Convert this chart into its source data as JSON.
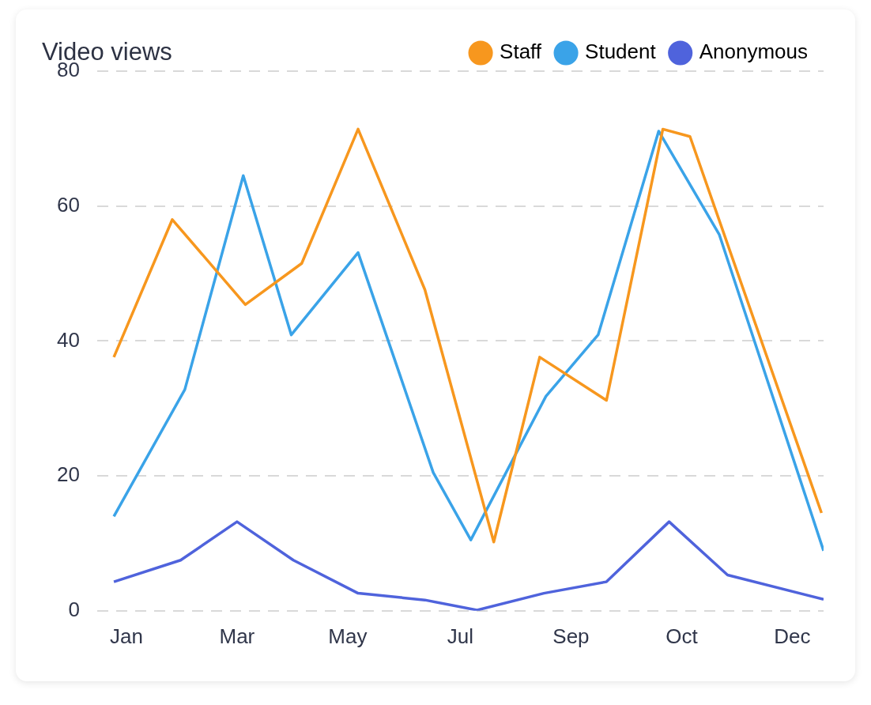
{
  "chart_data": {
    "type": "line",
    "title": "Video views",
    "series": [
      {
        "name": "Staff",
        "color": "#f7971e",
        "x": [
          "--01-25",
          "--02-22",
          "--03-29",
          "--04-25",
          "--05-22",
          "--06-23",
          "--07-26",
          "--08-17",
          "--09-18",
          "--10-15",
          "--10-28",
          "--12-30"
        ],
        "values": [
          37.6,
          58.0,
          45.4,
          51.5,
          71.4,
          47.6,
          10.2,
          37.6,
          31.2,
          71.4,
          70.3,
          14.5
        ]
      },
      {
        "name": "Student",
        "color": "#3aa3e8",
        "x": [
          "--01-25",
          "--02-28",
          "--03-28",
          "--04-20",
          "--05-22",
          "--06-27",
          "--07-15",
          "--08-20",
          "--09-14",
          "--10-13",
          "--11-11",
          "--12-31"
        ],
        "values": [
          14.0,
          32.8,
          64.5,
          40.9,
          53.1,
          20.5,
          10.5,
          31.8,
          40.9,
          71.1,
          55.8,
          8.9
        ]
      },
      {
        "name": "Anonymous",
        "color": "#4f63dc",
        "x": [
          "--01-25",
          "--02-26",
          "--03-25",
          "--04-21",
          "--05-22",
          "--06-23",
          "--07-18",
          "--08-19",
          "--09-18",
          "--10-18",
          "--11-15",
          "--12-31"
        ],
        "values": [
          4.3,
          7.5,
          13.2,
          7.5,
          2.6,
          1.6,
          0.1,
          2.6,
          4.3,
          13.2,
          5.3,
          1.7
        ]
      }
    ],
    "xlim": [
      "--01-17",
      "--12-31"
    ],
    "xticks": [
      {
        "value": "--01-31",
        "label": "Jan"
      },
      {
        "value": "--03-25",
        "label": "Mar"
      },
      {
        "value": "--05-17",
        "label": "May"
      },
      {
        "value": "--07-10",
        "label": "Jul"
      },
      {
        "value": "--09-01",
        "label": "Sep"
      },
      {
        "value": "--10-24",
        "label": "Oct"
      },
      {
        "value": "--12-16",
        "label": "Dec"
      }
    ],
    "ylim": [
      0,
      80
    ],
    "yticks": [
      0,
      20,
      40,
      60,
      80
    ],
    "grid": "y",
    "legend": "top right"
  }
}
